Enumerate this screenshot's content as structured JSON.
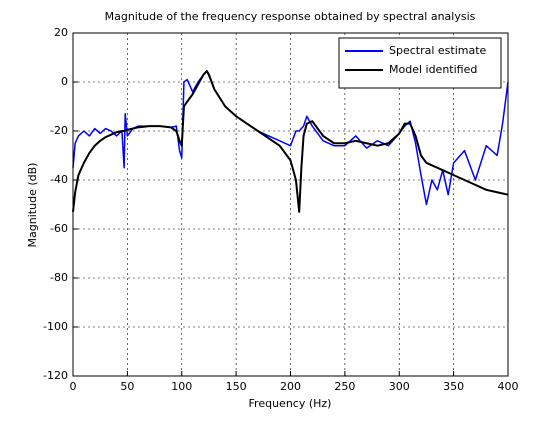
{
  "chart_data": {
    "type": "line",
    "title": "Magnitude of the frequency response obtained by spectral analysis",
    "x_label": "Frequency (Hz)",
    "y_label": "Magnitude (dB)",
    "x": [
      0,
      2,
      5,
      10,
      15,
      20,
      25,
      30,
      35,
      40,
      45,
      47,
      48,
      50,
      55,
      60,
      70,
      80,
      90,
      95,
      98,
      100,
      102,
      105,
      110,
      115,
      120,
      123,
      125,
      130,
      140,
      150,
      160,
      170,
      180,
      190,
      200,
      205,
      208,
      210,
      212,
      215,
      220,
      230,
      240,
      250,
      260,
      270,
      280,
      290,
      300,
      305,
      310,
      315,
      320,
      325,
      330,
      335,
      340,
      345,
      350,
      360,
      370,
      380,
      390,
      395,
      400
    ],
    "series": [
      {
        "name": "Spectral estimate",
        "color": "#0000ff",
        "values": [
          -35,
          -25,
          -22,
          -20,
          -22,
          -19,
          -21,
          -19,
          -20,
          -22,
          -20,
          -35,
          -13,
          -22,
          -19,
          -18,
          -18,
          -18,
          -18.5,
          -18,
          -28,
          -31,
          0,
          1,
          -4,
          0,
          3,
          4.5,
          2.5,
          -3,
          -10,
          -14,
          -17,
          -20,
          -22,
          -24,
          -26,
          -20,
          -20,
          -19,
          -18,
          -14,
          -18,
          -24,
          -26,
          -26,
          -22,
          -27,
          -24,
          -26,
          -21,
          -18,
          -16,
          -25,
          -38,
          -50,
          -40,
          -44,
          -36,
          -46,
          -33,
          -28,
          -40,
          -26,
          -30,
          -17,
          0
        ]
      },
      {
        "name": "Model identified",
        "color": "#000000",
        "values": [
          -53,
          -45,
          -38,
          -33,
          -29,
          -26,
          -24,
          -22.5,
          -21.5,
          -20.5,
          -20,
          -20,
          -19.8,
          -19.5,
          -19,
          -18.5,
          -18,
          -18,
          -18.5,
          -20,
          -24,
          -26,
          -10,
          -8,
          -5,
          -1,
          3,
          4.5,
          3,
          -3,
          -10,
          -14,
          -17,
          -20,
          -23,
          -26,
          -32,
          -40,
          -53,
          -35,
          -22,
          -17,
          -16,
          -22,
          -25,
          -25,
          -24,
          -25,
          -26,
          -25,
          -21,
          -17,
          -17,
          -22,
          -30,
          -33,
          -34,
          -35,
          -36,
          -37,
          -38,
          -40,
          -42,
          -44,
          -45,
          -45.5,
          -46
        ]
      }
    ],
    "xlim": [
      0,
      400
    ],
    "xticks": [
      0,
      50,
      100,
      150,
      200,
      250,
      300,
      350,
      400
    ],
    "ylim": [
      -120,
      20
    ],
    "yticks": [
      -120,
      -100,
      -80,
      -60,
      -40,
      -20,
      0,
      20
    ],
    "grid": true,
    "legend": "northeast"
  }
}
